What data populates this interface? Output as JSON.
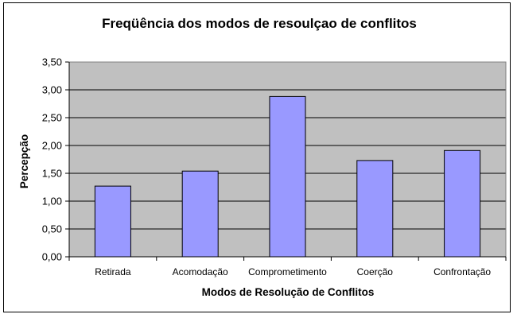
{
  "chart_data": {
    "type": "bar",
    "title": "Freqüência dos modos de resoulçao de conflitos",
    "xlabel": "Modos de Resolução de Conflitos",
    "ylabel": "Percepção",
    "categories": [
      "Retirada",
      "Acomodação",
      "Comprometimento",
      "Coerção",
      "Confrontação"
    ],
    "values": [
      1.27,
      1.54,
      2.88,
      1.73,
      1.91
    ],
    "ylim": [
      0,
      3.5
    ],
    "yticks": [
      "0,00",
      "0,50",
      "1,00",
      "1,50",
      "2,00",
      "2,50",
      "3,00",
      "3,50"
    ],
    "grid": true,
    "legend": "none",
    "colors": {
      "bar_fill": "#9999ff",
      "bar_stroke": "#000000",
      "plot_background": "#c0c0c0",
      "gridline": "#000000"
    }
  }
}
